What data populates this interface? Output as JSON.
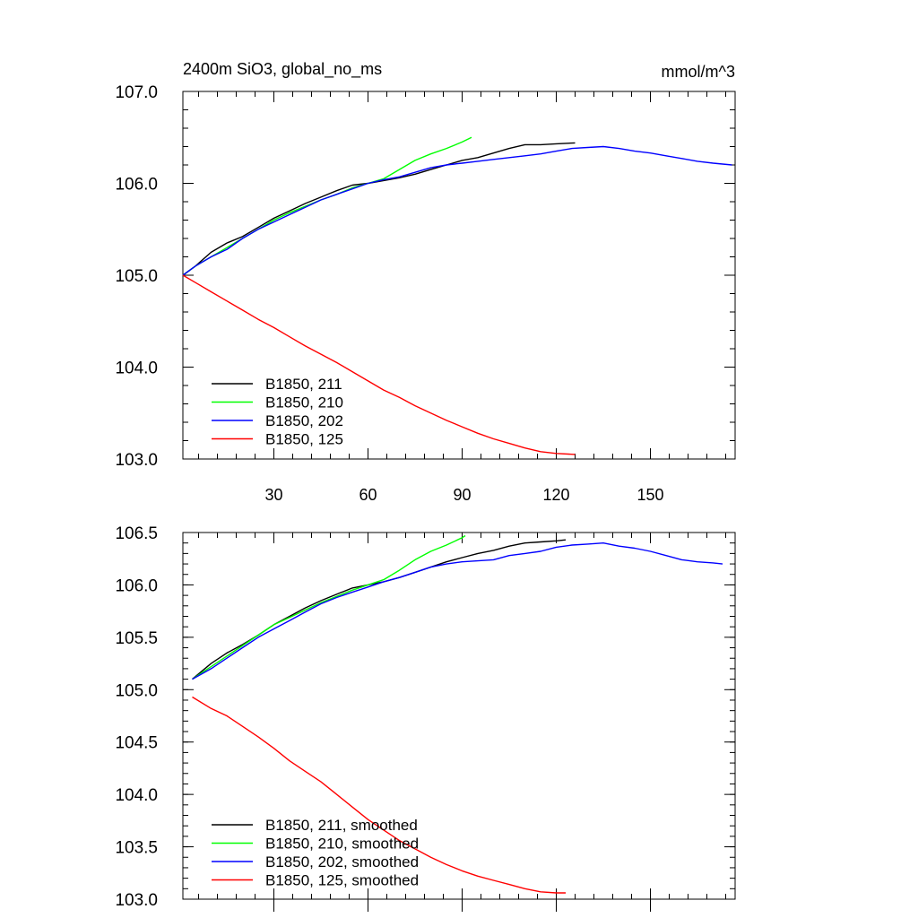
{
  "title_left": "2400m SiO3, global_no_ms",
  "title_right": "mmol/m^3",
  "chart_data": [
    {
      "type": "line",
      "xlim": [
        1,
        177
      ],
      "ylim": [
        103.0,
        107.0
      ],
      "xticks": [
        30,
        60,
        90,
        120,
        150
      ],
      "xtick_labels": [
        "30",
        "60",
        "90",
        "120",
        "150"
      ],
      "yticks": [
        103.0,
        104.0,
        105.0,
        106.0,
        107.0
      ],
      "ytick_labels": [
        "103.0",
        "104.0",
        "105.0",
        "106.0",
        "107.0"
      ],
      "legend_position": "bottom-left",
      "series": [
        {
          "name": "B1850, 211",
          "color": "#000000",
          "points": [
            [
              1,
              105.0
            ],
            [
              5,
              105.1
            ],
            [
              10,
              105.25
            ],
            [
              15,
              105.35
            ],
            [
              20,
              105.42
            ],
            [
              25,
              105.52
            ],
            [
              30,
              105.62
            ],
            [
              35,
              105.7
            ],
            [
              40,
              105.78
            ],
            [
              45,
              105.85
            ],
            [
              50,
              105.92
            ],
            [
              55,
              105.98
            ],
            [
              60,
              106.0
            ],
            [
              65,
              106.03
            ],
            [
              70,
              106.06
            ],
            [
              75,
              106.1
            ],
            [
              80,
              106.15
            ],
            [
              85,
              106.2
            ],
            [
              90,
              106.25
            ],
            [
              95,
              106.28
            ],
            [
              100,
              106.33
            ],
            [
              105,
              106.38
            ],
            [
              110,
              106.42
            ],
            [
              115,
              106.42
            ],
            [
              120,
              106.43
            ],
            [
              126,
              106.44
            ]
          ]
        },
        {
          "name": "B1850, 210",
          "color": "#00ff00",
          "points": [
            [
              1,
              105.0
            ],
            [
              5,
              105.1
            ],
            [
              10,
              105.2
            ],
            [
              15,
              105.3
            ],
            [
              20,
              105.4
            ],
            [
              25,
              105.5
            ],
            [
              30,
              105.6
            ],
            [
              35,
              105.68
            ],
            [
              40,
              105.75
            ],
            [
              45,
              105.82
            ],
            [
              50,
              105.88
            ],
            [
              55,
              105.95
            ],
            [
              60,
              106.0
            ],
            [
              65,
              106.05
            ],
            [
              70,
              106.15
            ],
            [
              75,
              106.25
            ],
            [
              80,
              106.32
            ],
            [
              85,
              106.38
            ],
            [
              90,
              106.45
            ],
            [
              93,
              106.5
            ]
          ]
        },
        {
          "name": "B1850, 202",
          "color": "#0000ff",
          "points": [
            [
              1,
              105.0
            ],
            [
              5,
              105.1
            ],
            [
              10,
              105.2
            ],
            [
              15,
              105.28
            ],
            [
              20,
              105.4
            ],
            [
              25,
              105.5
            ],
            [
              30,
              105.58
            ],
            [
              35,
              105.66
            ],
            [
              40,
              105.74
            ],
            [
              45,
              105.82
            ],
            [
              50,
              105.88
            ],
            [
              55,
              105.94
            ],
            [
              60,
              106.0
            ],
            [
              65,
              106.04
            ],
            [
              70,
              106.07
            ],
            [
              75,
              106.12
            ],
            [
              80,
              106.17
            ],
            [
              85,
              106.2
            ],
            [
              90,
              106.22
            ],
            [
              95,
              106.24
            ],
            [
              100,
              106.26
            ],
            [
              105,
              106.28
            ],
            [
              110,
              106.3
            ],
            [
              115,
              106.32
            ],
            [
              120,
              106.35
            ],
            [
              125,
              106.38
            ],
            [
              130,
              106.39
            ],
            [
              135,
              106.4
            ],
            [
              140,
              106.38
            ],
            [
              145,
              106.35
            ],
            [
              150,
              106.33
            ],
            [
              155,
              106.3
            ],
            [
              160,
              106.27
            ],
            [
              165,
              106.24
            ],
            [
              170,
              106.22
            ],
            [
              176,
              106.2
            ]
          ]
        },
        {
          "name": "B1850, 125",
          "color": "#ff0000",
          "points": [
            [
              1,
              105.0
            ],
            [
              5,
              104.92
            ],
            [
              10,
              104.82
            ],
            [
              15,
              104.72
            ],
            [
              20,
              104.62
            ],
            [
              25,
              104.52
            ],
            [
              30,
              104.43
            ],
            [
              35,
              104.33
            ],
            [
              40,
              104.23
            ],
            [
              45,
              104.14
            ],
            [
              50,
              104.05
            ],
            [
              55,
              103.95
            ],
            [
              60,
              103.85
            ],
            [
              65,
              103.75
            ],
            [
              70,
              103.67
            ],
            [
              75,
              103.58
            ],
            [
              80,
              103.5
            ],
            [
              85,
              103.42
            ],
            [
              90,
              103.35
            ],
            [
              95,
              103.28
            ],
            [
              100,
              103.22
            ],
            [
              105,
              103.17
            ],
            [
              110,
              103.12
            ],
            [
              115,
              103.08
            ],
            [
              120,
              103.06
            ],
            [
              126,
              103.05
            ]
          ]
        }
      ]
    },
    {
      "type": "line",
      "xlim": [
        1,
        177
      ],
      "ylim": [
        103.0,
        106.5
      ],
      "xticks": [
        30,
        60,
        90,
        120,
        150
      ],
      "xtick_labels": [],
      "yticks": [
        103.0,
        103.5,
        104.0,
        104.5,
        105.0,
        105.5,
        106.0,
        106.5
      ],
      "ytick_labels": [
        "103.0",
        "103.5",
        "104.0",
        "104.5",
        "105.0",
        "105.5",
        "106.0",
        "106.5"
      ],
      "legend_position": "bottom-left",
      "series": [
        {
          "name": "B1850, 211, smoothed",
          "color": "#000000",
          "points": [
            [
              4,
              105.1
            ],
            [
              10,
              105.25
            ],
            [
              15,
              105.35
            ],
            [
              20,
              105.43
            ],
            [
              25,
              105.52
            ],
            [
              30,
              105.62
            ],
            [
              35,
              105.7
            ],
            [
              40,
              105.78
            ],
            [
              45,
              105.85
            ],
            [
              50,
              105.91
            ],
            [
              55,
              105.97
            ],
            [
              60,
              106.0
            ],
            [
              65,
              106.03
            ],
            [
              70,
              106.07
            ],
            [
              75,
              106.12
            ],
            [
              80,
              106.17
            ],
            [
              85,
              106.22
            ],
            [
              90,
              106.26
            ],
            [
              95,
              106.3
            ],
            [
              100,
              106.33
            ],
            [
              105,
              106.37
            ],
            [
              110,
              106.4
            ],
            [
              115,
              106.41
            ],
            [
              120,
              106.42
            ],
            [
              123,
              106.43
            ]
          ]
        },
        {
          "name": "B1850, 210, smoothed",
          "color": "#00ff00",
          "points": [
            [
              4,
              105.1
            ],
            [
              10,
              105.22
            ],
            [
              15,
              105.32
            ],
            [
              20,
              105.42
            ],
            [
              25,
              105.52
            ],
            [
              30,
              105.62
            ],
            [
              35,
              105.69
            ],
            [
              40,
              105.76
            ],
            [
              45,
              105.83
            ],
            [
              50,
              105.89
            ],
            [
              55,
              105.95
            ],
            [
              60,
              106.0
            ],
            [
              65,
              106.05
            ],
            [
              70,
              106.14
            ],
            [
              75,
              106.24
            ],
            [
              80,
              106.32
            ],
            [
              85,
              106.38
            ],
            [
              90,
              106.45
            ],
            [
              91,
              106.47
            ]
          ]
        },
        {
          "name": "B1850, 202, smoothed",
          "color": "#0000ff",
          "points": [
            [
              4,
              105.1
            ],
            [
              10,
              105.2
            ],
            [
              15,
              105.3
            ],
            [
              20,
              105.4
            ],
            [
              25,
              105.5
            ],
            [
              30,
              105.58
            ],
            [
              35,
              105.66
            ],
            [
              40,
              105.74
            ],
            [
              45,
              105.82
            ],
            [
              50,
              105.88
            ],
            [
              55,
              105.93
            ],
            [
              60,
              105.98
            ],
            [
              65,
              106.03
            ],
            [
              70,
              106.07
            ],
            [
              75,
              106.12
            ],
            [
              80,
              106.17
            ],
            [
              85,
              106.2
            ],
            [
              90,
              106.22
            ],
            [
              95,
              106.23
            ],
            [
              100,
              106.24
            ],
            [
              105,
              106.28
            ],
            [
              110,
              106.3
            ],
            [
              115,
              106.32
            ],
            [
              120,
              106.36
            ],
            [
              125,
              106.38
            ],
            [
              130,
              106.39
            ],
            [
              135,
              106.4
            ],
            [
              140,
              106.37
            ],
            [
              145,
              106.35
            ],
            [
              150,
              106.32
            ],
            [
              155,
              106.28
            ],
            [
              160,
              106.24
            ],
            [
              165,
              106.22
            ],
            [
              170,
              106.21
            ],
            [
              173,
              106.2
            ]
          ]
        },
        {
          "name": "B1850, 125, smoothed",
          "color": "#ff0000",
          "points": [
            [
              4,
              104.93
            ],
            [
              10,
              104.82
            ],
            [
              15,
              104.75
            ],
            [
              20,
              104.65
            ],
            [
              25,
              104.55
            ],
            [
              30,
              104.44
            ],
            [
              35,
              104.32
            ],
            [
              40,
              104.22
            ],
            [
              45,
              104.12
            ],
            [
              50,
              104.0
            ],
            [
              55,
              103.88
            ],
            [
              60,
              103.76
            ],
            [
              65,
              103.66
            ],
            [
              70,
              103.56
            ],
            [
              75,
              103.48
            ],
            [
              80,
              103.4
            ],
            [
              85,
              103.33
            ],
            [
              90,
              103.27
            ],
            [
              95,
              103.22
            ],
            [
              100,
              103.18
            ],
            [
              105,
              103.14
            ],
            [
              110,
              103.1
            ],
            [
              115,
              103.07
            ],
            [
              120,
              103.06
            ],
            [
              123,
              103.06
            ]
          ]
        }
      ]
    }
  ]
}
